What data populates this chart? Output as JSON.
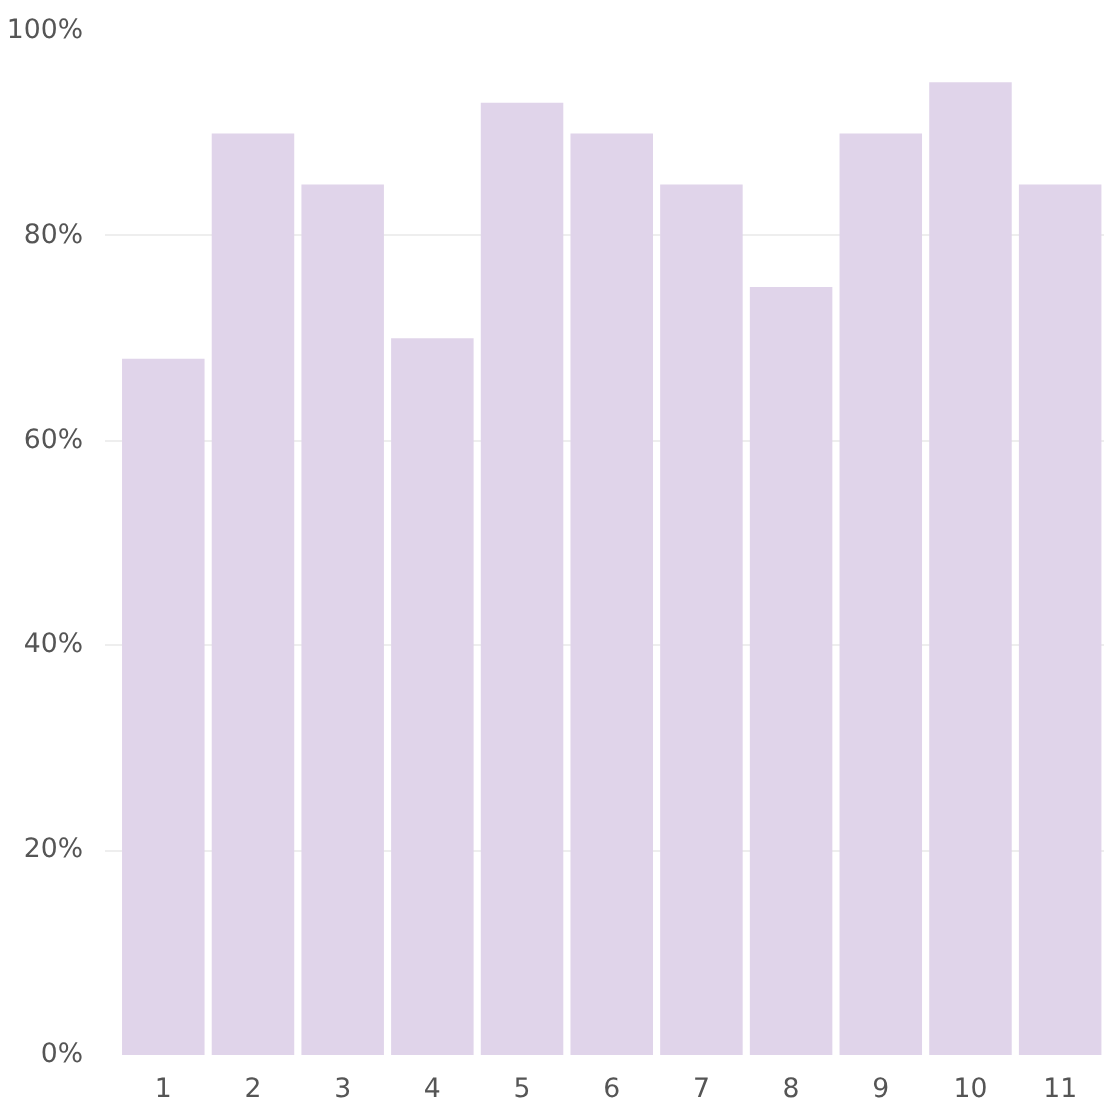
{
  "chart_data": {
    "type": "bar",
    "categories": [
      "1",
      "2",
      "3",
      "4",
      "5",
      "6",
      "7",
      "8",
      "9",
      "10",
      "11"
    ],
    "values": [
      68,
      90,
      85,
      70,
      93,
      90,
      85,
      75,
      90,
      95,
      85
    ],
    "color": "#e0d4ea",
    "ylim": [
      0,
      100
    ],
    "yticks": [
      {
        "value": 0,
        "label": "0%"
      },
      {
        "value": 20,
        "label": "20%"
      },
      {
        "value": 40,
        "label": "40%"
      },
      {
        "value": 60,
        "label": "60%"
      },
      {
        "value": 80,
        "label": "80%"
      },
      {
        "value": 100,
        "label": "100%"
      }
    ],
    "grid": "y"
  }
}
